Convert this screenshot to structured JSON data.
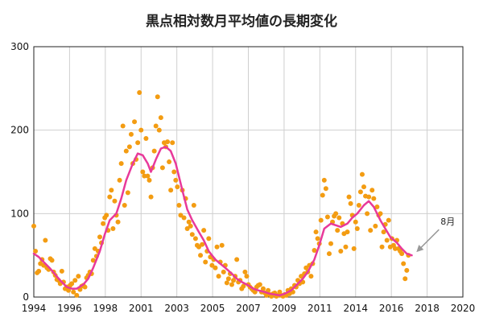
{
  "chart_data": {
    "type": "scatter",
    "title": "黒点相対数月平均値の長期変化",
    "xlabel": "",
    "ylabel": "",
    "xlim": [
      1994,
      2020
    ],
    "ylim": [
      0,
      300
    ],
    "x_ticks": [
      "1994",
      "1996",
      "1998",
      "2001",
      "2003",
      "2005",
      "2007",
      "2009",
      "2011",
      "2014",
      "2016",
      "2018",
      "2020"
    ],
    "y_ticks": [
      "0",
      "100",
      "200",
      "300"
    ],
    "grid": true,
    "colors": {
      "monthly": "#f39c12",
      "smoothed": "#e8399a",
      "arrow": "#999999",
      "axis": "#222222",
      "grid": "#cfcfcf"
    },
    "annotation": {
      "text": "8月",
      "points_to": [
        2016.6,
        50
      ]
    },
    "series": [
      {
        "name": "monthly",
        "style": "scatter",
        "points": [
          [
            1994.0,
            85
          ],
          [
            1994.1,
            55
          ],
          [
            1994.2,
            29
          ],
          [
            1994.3,
            31
          ],
          [
            1994.4,
            40
          ],
          [
            1994.5,
            45
          ],
          [
            1994.6,
            38
          ],
          [
            1994.7,
            68
          ],
          [
            1994.8,
            35
          ],
          [
            1994.9,
            33
          ],
          [
            1995.0,
            46
          ],
          [
            1995.1,
            44
          ],
          [
            1995.2,
            30
          ],
          [
            1995.3,
            26
          ],
          [
            1995.4,
            21
          ],
          [
            1995.5,
            20
          ],
          [
            1995.6,
            16
          ],
          [
            1995.7,
            31
          ],
          [
            1995.8,
            18
          ],
          [
            1995.9,
            10
          ],
          [
            1996.0,
            12
          ],
          [
            1996.1,
            8
          ],
          [
            1996.2,
            14
          ],
          [
            1996.3,
            16
          ],
          [
            1996.4,
            6
          ],
          [
            1996.5,
            20
          ],
          [
            1996.6,
            2
          ],
          [
            1996.7,
            25
          ],
          [
            1996.8,
            9
          ],
          [
            1996.9,
            13
          ],
          [
            1997.0,
            14
          ],
          [
            1997.1,
            12
          ],
          [
            1997.2,
            23
          ],
          [
            1997.3,
            26
          ],
          [
            1997.4,
            30
          ],
          [
            1997.5,
            28
          ],
          [
            1997.6,
            44
          ],
          [
            1997.7,
            58
          ],
          [
            1997.8,
            49
          ],
          [
            1997.9,
            55
          ],
          [
            1998.0,
            72
          ],
          [
            1998.1,
            65
          ],
          [
            1998.2,
            88
          ],
          [
            1998.3,
            95
          ],
          [
            1998.4,
            98
          ],
          [
            1998.5,
            80
          ],
          [
            1998.6,
            120
          ],
          [
            1998.7,
            128
          ],
          [
            1998.8,
            82
          ],
          [
            1998.9,
            115
          ],
          [
            1999.0,
            98
          ],
          [
            1999.1,
            90
          ],
          [
            1999.2,
            140
          ],
          [
            1999.3,
            160
          ],
          [
            1999.4,
            205
          ],
          [
            1999.5,
            110
          ],
          [
            1999.6,
            175
          ],
          [
            1999.7,
            125
          ],
          [
            1999.8,
            180
          ],
          [
            1999.9,
            195
          ],
          [
            2000.0,
            160
          ],
          [
            2000.1,
            210
          ],
          [
            2000.2,
            165
          ],
          [
            2000.3,
            185
          ],
          [
            2000.4,
            245
          ],
          [
            2000.5,
            200
          ],
          [
            2000.6,
            150
          ],
          [
            2000.7,
            145
          ],
          [
            2000.8,
            190
          ],
          [
            2000.9,
            145
          ],
          [
            2001.0,
            140
          ],
          [
            2001.1,
            120
          ],
          [
            2001.2,
            155
          ],
          [
            2001.3,
            175
          ],
          [
            2001.4,
            205
          ],
          [
            2001.5,
            240
          ],
          [
            2001.6,
            200
          ],
          [
            2001.7,
            215
          ],
          [
            2001.8,
            155
          ],
          [
            2001.9,
            185
          ],
          [
            2002.0,
            180
          ],
          [
            2002.1,
            186
          ],
          [
            2002.2,
            162
          ],
          [
            2002.3,
            128
          ],
          [
            2002.4,
            185
          ],
          [
            2002.5,
            150
          ],
          [
            2002.6,
            140
          ],
          [
            2002.7,
            132
          ],
          [
            2002.8,
            110
          ],
          [
            2002.9,
            98
          ],
          [
            2003.0,
            128
          ],
          [
            2003.1,
            95
          ],
          [
            2003.2,
            118
          ],
          [
            2003.3,
            82
          ],
          [
            2003.4,
            90
          ],
          [
            2003.5,
            85
          ],
          [
            2003.6,
            75
          ],
          [
            2003.7,
            110
          ],
          [
            2003.8,
            70
          ],
          [
            2003.9,
            62
          ],
          [
            2004.0,
            60
          ],
          [
            2004.1,
            50
          ],
          [
            2004.2,
            63
          ],
          [
            2004.3,
            80
          ],
          [
            2004.4,
            42
          ],
          [
            2004.5,
            55
          ],
          [
            2004.6,
            70
          ],
          [
            2004.7,
            48
          ],
          [
            2004.8,
            38
          ],
          [
            2004.9,
            45
          ],
          [
            2005.0,
            35
          ],
          [
            2005.1,
            60
          ],
          [
            2005.2,
            25
          ],
          [
            2005.3,
            42
          ],
          [
            2005.4,
            62
          ],
          [
            2005.5,
            30
          ],
          [
            2005.6,
            38
          ],
          [
            2005.7,
            17
          ],
          [
            2005.8,
            22
          ],
          [
            2005.9,
            28
          ],
          [
            2006.0,
            15
          ],
          [
            2006.1,
            20
          ],
          [
            2006.2,
            25
          ],
          [
            2006.3,
            45
          ],
          [
            2006.4,
            18
          ],
          [
            2006.5,
            20
          ],
          [
            2006.6,
            10
          ],
          [
            2006.7,
            13
          ],
          [
            2006.8,
            30
          ],
          [
            2006.9,
            25
          ],
          [
            2007.0,
            15
          ],
          [
            2007.1,
            12
          ],
          [
            2007.2,
            10
          ],
          [
            2007.3,
            8
          ],
          [
            2007.4,
            6
          ],
          [
            2007.5,
            12
          ],
          [
            2007.6,
            14
          ],
          [
            2007.7,
            15
          ],
          [
            2007.8,
            6
          ],
          [
            2007.9,
            10
          ],
          [
            2008.0,
            5
          ],
          [
            2008.1,
            2
          ],
          [
            2008.2,
            8
          ],
          [
            2008.3,
            3
          ],
          [
            2008.4,
            1
          ],
          [
            2008.5,
            4
          ],
          [
            2008.6,
            5
          ],
          [
            2008.7,
            1
          ],
          [
            2008.8,
            2
          ],
          [
            2008.9,
            6
          ],
          [
            2009.0,
            2
          ],
          [
            2009.1,
            1
          ],
          [
            2009.2,
            3
          ],
          [
            2009.3,
            2
          ],
          [
            2009.4,
            8
          ],
          [
            2009.5,
            4
          ],
          [
            2009.6,
            10
          ],
          [
            2009.7,
            6
          ],
          [
            2009.8,
            14
          ],
          [
            2009.9,
            12
          ],
          [
            2010.0,
            20
          ],
          [
            2010.1,
            16
          ],
          [
            2010.2,
            25
          ],
          [
            2010.3,
            18
          ],
          [
            2010.4,
            28
          ],
          [
            2010.5,
            35
          ],
          [
            2010.6,
            30
          ],
          [
            2010.7,
            38
          ],
          [
            2010.8,
            25
          ],
          [
            2010.9,
            40
          ],
          [
            2011.0,
            56
          ],
          [
            2011.1,
            78
          ],
          [
            2011.2,
            70
          ],
          [
            2011.3,
            64
          ],
          [
            2011.4,
            92
          ],
          [
            2011.5,
            122
          ],
          [
            2011.6,
            140
          ],
          [
            2011.7,
            130
          ],
          [
            2011.8,
            96
          ],
          [
            2011.9,
            52
          ],
          [
            2012.0,
            64
          ],
          [
            2012.1,
            90
          ],
          [
            2012.2,
            97
          ],
          [
            2012.3,
            100
          ],
          [
            2012.4,
            80
          ],
          [
            2012.5,
            95
          ],
          [
            2012.6,
            55
          ],
          [
            2012.7,
            88
          ],
          [
            2012.8,
            76
          ],
          [
            2012.9,
            60
          ],
          [
            2013.0,
            78
          ],
          [
            2013.1,
            120
          ],
          [
            2013.2,
            112
          ],
          [
            2013.3,
            98
          ],
          [
            2013.4,
            58
          ],
          [
            2013.5,
            90
          ],
          [
            2013.6,
            82
          ],
          [
            2013.7,
            110
          ],
          [
            2013.8,
            126
          ],
          [
            2013.9,
            147
          ],
          [
            2014.0,
            132
          ],
          [
            2014.1,
            121
          ],
          [
            2014.2,
            100
          ],
          [
            2014.3,
            120
          ],
          [
            2014.4,
            80
          ],
          [
            2014.5,
            128
          ],
          [
            2014.6,
            118
          ],
          [
            2014.7,
            85
          ],
          [
            2014.8,
            108
          ],
          [
            2014.9,
            98
          ],
          [
            2015.0,
            100
          ],
          [
            2015.1,
            60
          ],
          [
            2015.2,
            78
          ],
          [
            2015.3,
            87
          ],
          [
            2015.4,
            68
          ],
          [
            2015.5,
            92
          ],
          [
            2015.6,
            60
          ],
          [
            2015.7,
            70
          ],
          [
            2015.8,
            62
          ],
          [
            2015.9,
            58
          ],
          [
            2016.0,
            68
          ],
          [
            2016.1,
            58
          ],
          [
            2016.2,
            55
          ],
          [
            2016.3,
            52
          ],
          [
            2016.4,
            40
          ],
          [
            2016.5,
            22
          ],
          [
            2016.6,
            32
          ],
          [
            2016.7,
            50
          ]
        ]
      },
      {
        "name": "smoothed",
        "style": "line",
        "points": [
          [
            1994.0,
            52
          ],
          [
            1994.3,
            48
          ],
          [
            1994.6,
            42
          ],
          [
            1995.0,
            34
          ],
          [
            1995.3,
            27
          ],
          [
            1995.6,
            20
          ],
          [
            1996.0,
            12
          ],
          [
            1996.3,
            10
          ],
          [
            1996.6,
            10
          ],
          [
            1997.0,
            15
          ],
          [
            1997.3,
            22
          ],
          [
            1997.6,
            35
          ],
          [
            1998.0,
            55
          ],
          [
            1998.3,
            75
          ],
          [
            1998.6,
            92
          ],
          [
            1999.0,
            100
          ],
          [
            1999.3,
            118
          ],
          [
            1999.6,
            140
          ],
          [
            2000.0,
            160
          ],
          [
            2000.3,
            172
          ],
          [
            2000.6,
            170
          ],
          [
            2000.9,
            160
          ],
          [
            2001.1,
            150
          ],
          [
            2001.4,
            165
          ],
          [
            2001.7,
            178
          ],
          [
            2002.0,
            180
          ],
          [
            2002.3,
            175
          ],
          [
            2002.6,
            160
          ],
          [
            2003.0,
            128
          ],
          [
            2003.3,
            105
          ],
          [
            2003.6,
            92
          ],
          [
            2004.0,
            78
          ],
          [
            2004.3,
            68
          ],
          [
            2004.6,
            55
          ],
          [
            2005.0,
            45
          ],
          [
            2005.3,
            40
          ],
          [
            2005.6,
            35
          ],
          [
            2006.0,
            28
          ],
          [
            2006.3,
            22
          ],
          [
            2006.6,
            18
          ],
          [
            2007.0,
            14
          ],
          [
            2007.3,
            10
          ],
          [
            2007.6,
            8
          ],
          [
            2008.0,
            6
          ],
          [
            2008.3,
            4
          ],
          [
            2008.6,
            3
          ],
          [
            2008.9,
            2
          ],
          [
            2009.2,
            4
          ],
          [
            2009.6,
            8
          ],
          [
            2010.0,
            16
          ],
          [
            2010.3,
            22
          ],
          [
            2010.6,
            30
          ],
          [
            2011.0,
            45
          ],
          [
            2011.3,
            62
          ],
          [
            2011.6,
            82
          ],
          [
            2012.0,
            88
          ],
          [
            2012.3,
            86
          ],
          [
            2012.6,
            84
          ],
          [
            2013.0,
            88
          ],
          [
            2013.3,
            95
          ],
          [
            2013.6,
            100
          ],
          [
            2014.0,
            110
          ],
          [
            2014.3,
            115
          ],
          [
            2014.6,
            108
          ],
          [
            2015.0,
            92
          ],
          [
            2015.3,
            82
          ],
          [
            2015.6,
            72
          ],
          [
            2016.0,
            65
          ],
          [
            2016.3,
            58
          ],
          [
            2016.6,
            52
          ],
          [
            2016.9,
            50
          ]
        ]
      }
    ]
  }
}
